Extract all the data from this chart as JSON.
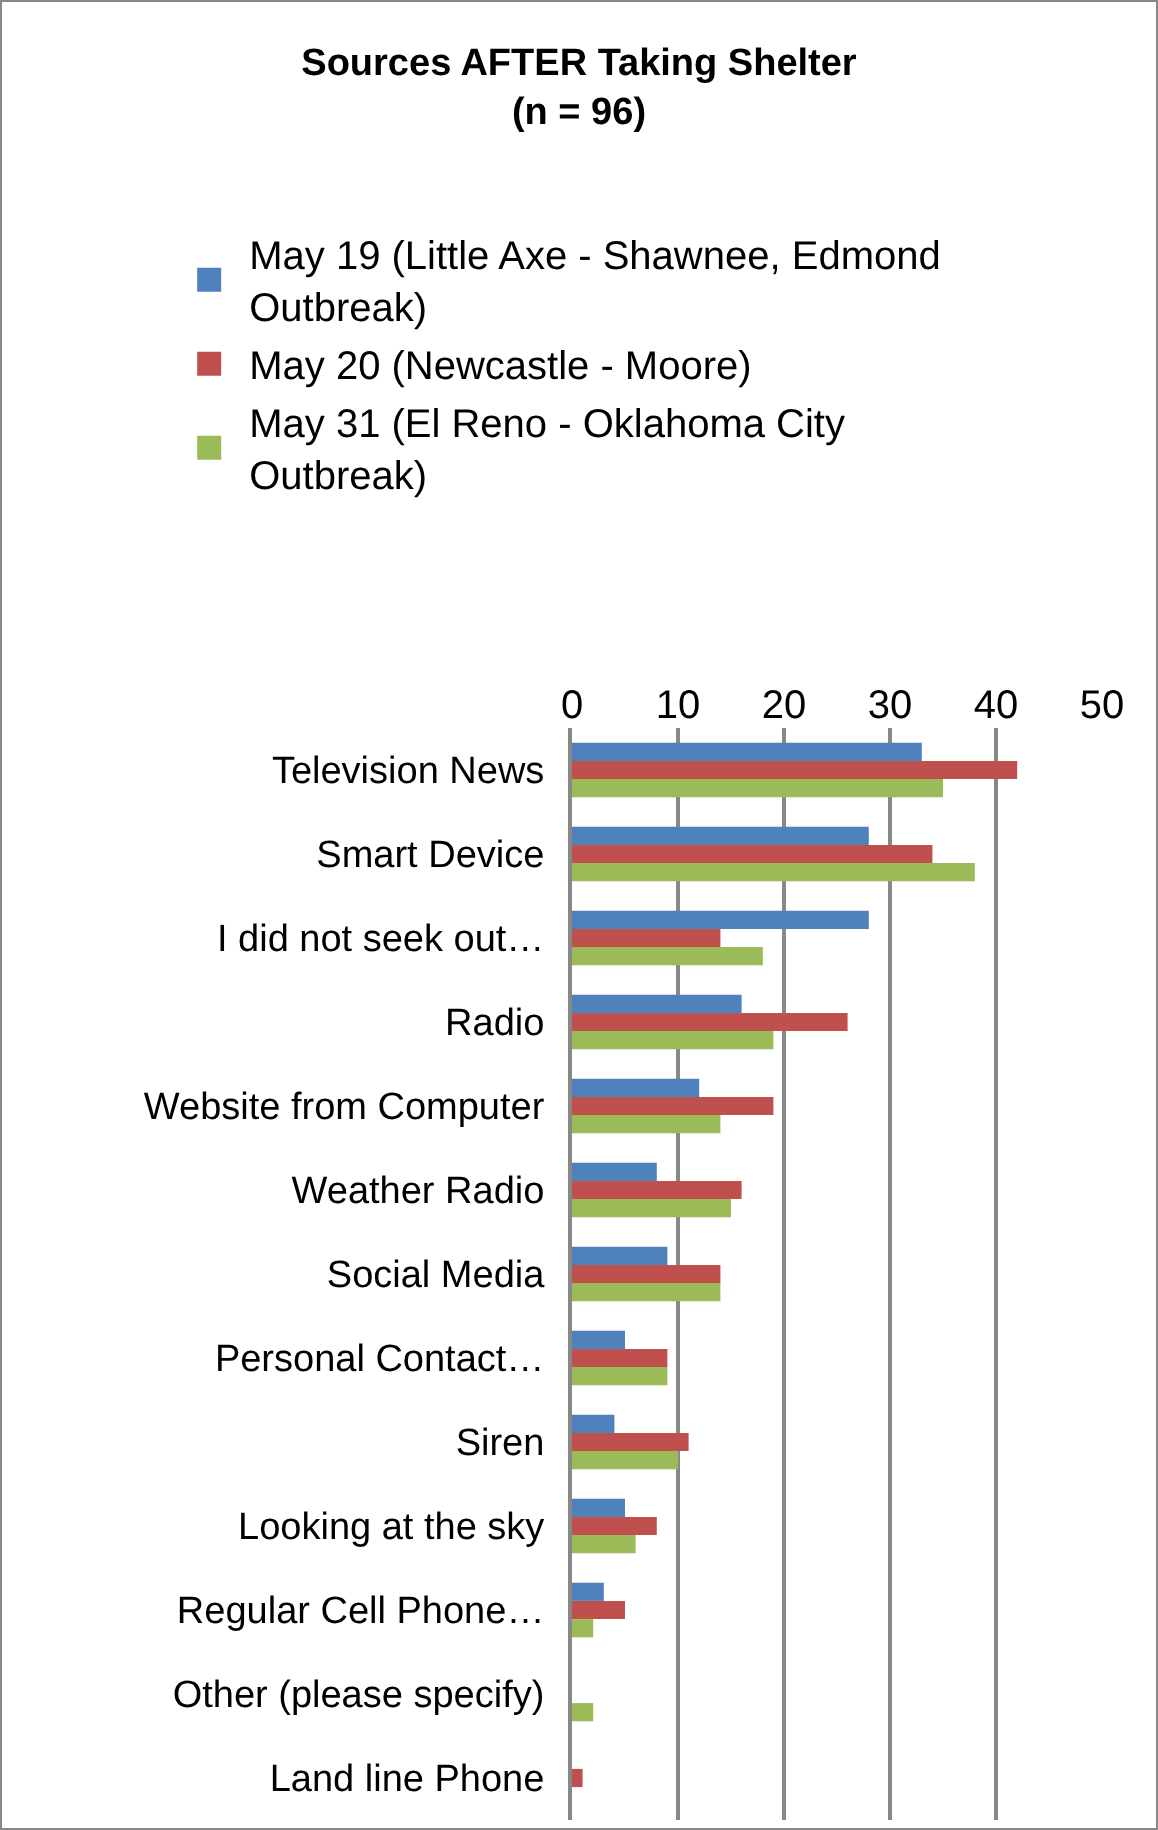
{
  "chart_data": {
    "type": "bar",
    "orientation": "horizontal",
    "title": "Sources AFTER Taking Shelter\n(n = 96)",
    "categories": [
      "Television News",
      "Smart Device",
      "I did not seek out…",
      "Radio",
      "Website from Computer",
      "Weather Radio",
      "Social Media",
      "Personal Contact…",
      "Siren",
      "Looking at the sky",
      "Regular Cell Phone…",
      "Other (please specify)",
      "Land line Phone"
    ],
    "series": [
      {
        "name": "May 19 (Little Axe - Shawnee, Edmond Outbreak)",
        "color": "#4f81bd",
        "values": [
          33,
          28,
          28,
          16,
          12,
          8,
          9,
          5,
          4,
          5,
          3,
          0,
          0
        ]
      },
      {
        "name": "May 20 (Newcastle - Moore)",
        "color": "#c0504d",
        "values": [
          42,
          34,
          14,
          26,
          19,
          16,
          14,
          9,
          11,
          8,
          5,
          0,
          1
        ]
      },
      {
        "name": "May 31 (El Reno - Oklahoma City Outbreak)",
        "color": "#9bbb59",
        "values": [
          35,
          38,
          18,
          19,
          14,
          15,
          14,
          9,
          10,
          6,
          2,
          2,
          0
        ]
      }
    ],
    "xlim": [
      0,
      50
    ],
    "xticks": [
      0,
      10,
      20,
      30,
      40,
      50
    ],
    "grid": "x",
    "legend": "top left"
  }
}
